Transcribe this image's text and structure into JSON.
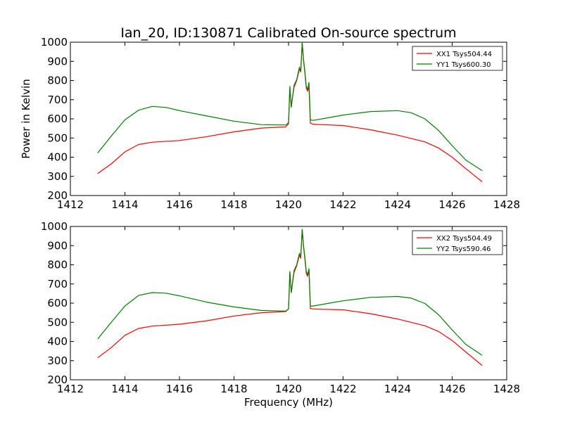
{
  "title": "Ian_20, ID:130871 Calibrated On-source spectrum",
  "chart_data": [
    {
      "type": "line",
      "title": "Ian_20, ID:130871 Calibrated On-source spectrum",
      "xlabel": "",
      "ylabel": "Power in Kelvin",
      "xlim": [
        1412,
        1428
      ],
      "ylim": [
        200,
        1000
      ],
      "xticks": [
        1412,
        1414,
        1416,
        1418,
        1420,
        1422,
        1424,
        1426,
        1428
      ],
      "yticks": [
        200,
        300,
        400,
        500,
        600,
        700,
        800,
        900,
        1000
      ],
      "grid": false,
      "legend_position": "top-right",
      "series": [
        {
          "name": "XX1 Tsys504.44",
          "color": "#ff0000",
          "x": [
            1413.0,
            1413.5,
            1414.0,
            1414.5,
            1415.0,
            1416.0,
            1417.0,
            1418.0,
            1419.0,
            1419.9,
            1420.0,
            1420.05,
            1420.1,
            1420.2,
            1420.3,
            1420.4,
            1420.45,
            1420.5,
            1420.55,
            1420.6,
            1420.65,
            1420.7,
            1420.75,
            1420.8,
            1420.9,
            1421.2,
            1422.0,
            1423.0,
            1424.0,
            1425.0,
            1425.5,
            1426.0,
            1426.5,
            1427.1
          ],
          "y": [
            315,
            365,
            428,
            466,
            478,
            487,
            507,
            532,
            552,
            558,
            575,
            760,
            665,
            765,
            800,
            860,
            845,
            995,
            905,
            840,
            760,
            745,
            765,
            578,
            572,
            570,
            565,
            543,
            515,
            480,
            448,
            400,
            340,
            272
          ]
        },
        {
          "name": "YY1 Tsys600.30",
          "color": "#008000",
          "x": [
            1413.0,
            1413.5,
            1414.0,
            1414.5,
            1415.0,
            1415.5,
            1416.0,
            1417.0,
            1418.0,
            1419.0,
            1419.9,
            1420.0,
            1420.05,
            1420.1,
            1420.2,
            1420.3,
            1420.4,
            1420.45,
            1420.5,
            1420.55,
            1420.6,
            1420.65,
            1420.7,
            1420.75,
            1420.8,
            1420.9,
            1421.5,
            1422.0,
            1423.0,
            1424.0,
            1424.5,
            1425.0,
            1425.5,
            1426.0,
            1426.5,
            1427.1
          ],
          "y": [
            422,
            510,
            595,
            645,
            665,
            660,
            643,
            615,
            588,
            570,
            568,
            580,
            770,
            660,
            775,
            805,
            870,
            850,
            1000,
            910,
            850,
            770,
            755,
            790,
            595,
            592,
            607,
            620,
            638,
            643,
            632,
            600,
            540,
            460,
            385,
            330
          ]
        }
      ]
    },
    {
      "type": "line",
      "title": "",
      "xlabel": "Frequency (MHz)",
      "ylabel": "",
      "xlim": [
        1412,
        1428
      ],
      "ylim": [
        200,
        1000
      ],
      "xticks": [
        1412,
        1414,
        1416,
        1418,
        1420,
        1422,
        1424,
        1426,
        1428
      ],
      "yticks": [
        200,
        300,
        400,
        500,
        600,
        700,
        800,
        900,
        1000
      ],
      "grid": false,
      "legend_position": "top-right",
      "series": [
        {
          "name": "XX2 Tsys504.49",
          "color": "#ff0000",
          "x": [
            1413.0,
            1413.5,
            1414.0,
            1414.5,
            1415.0,
            1416.0,
            1417.0,
            1418.0,
            1419.0,
            1419.9,
            1420.0,
            1420.05,
            1420.1,
            1420.2,
            1420.3,
            1420.4,
            1420.45,
            1420.5,
            1420.55,
            1420.6,
            1420.65,
            1420.7,
            1420.75,
            1420.8,
            1420.9,
            1421.2,
            1422.0,
            1423.0,
            1424.0,
            1425.0,
            1425.5,
            1426.0,
            1426.5,
            1427.1
          ],
          "y": [
            315,
            368,
            432,
            468,
            480,
            490,
            508,
            533,
            550,
            556,
            570,
            760,
            655,
            760,
            795,
            850,
            835,
            985,
            895,
            830,
            755,
            740,
            770,
            572,
            570,
            568,
            565,
            545,
            517,
            482,
            452,
            405,
            345,
            275
          ]
        },
        {
          "name": "YY2 Tsys590.46",
          "color": "#008000",
          "x": [
            1413.0,
            1413.5,
            1414.0,
            1414.5,
            1415.0,
            1415.5,
            1416.0,
            1417.0,
            1418.0,
            1419.0,
            1419.9,
            1420.0,
            1420.05,
            1420.1,
            1420.2,
            1420.3,
            1420.4,
            1420.45,
            1420.5,
            1420.55,
            1420.6,
            1420.65,
            1420.7,
            1420.75,
            1420.8,
            1420.9,
            1421.5,
            1422.0,
            1423.0,
            1424.0,
            1424.5,
            1425.0,
            1425.5,
            1426.0,
            1426.5,
            1427.1
          ],
          "y": [
            413,
            500,
            585,
            640,
            655,
            652,
            638,
            605,
            580,
            562,
            558,
            570,
            765,
            655,
            770,
            800,
            860,
            845,
            985,
            900,
            840,
            765,
            750,
            780,
            585,
            585,
            600,
            612,
            630,
            635,
            626,
            598,
            540,
            460,
            385,
            328
          ]
        }
      ]
    }
  ]
}
